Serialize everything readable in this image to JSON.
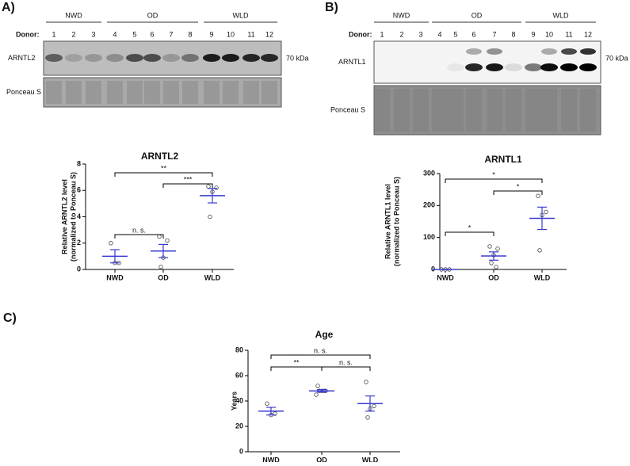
{
  "panels": [
    "A)",
    "B)",
    "C)"
  ],
  "blots": [
    {
      "groups": [
        "NWD",
        "OD",
        "WLD"
      ],
      "donor_label": "Donor:",
      "donors": [
        "1",
        "2",
        "3",
        "4",
        "5",
        "6",
        "7",
        "8",
        "9",
        "10",
        "11",
        "12"
      ],
      "protein": "ARNTL2",
      "size": "70 kDa",
      "loading": "Ponceau S"
    },
    {
      "groups": [
        "NWD",
        "OD",
        "WLD"
      ],
      "donor_label": "Donor:",
      "donors": [
        "1",
        "2",
        "3",
        "4",
        "5",
        "6",
        "7",
        "8",
        "9",
        "10",
        "11",
        "12"
      ],
      "protein": "ARNTL1",
      "size": "70 kDa",
      "loading": "Ponceau S"
    }
  ],
  "chart_data": [
    {
      "type": "scatter",
      "title": "ARNTL2",
      "y_label": [
        "Relative ARNTL2 level",
        "(normalized to Ponceau S)"
      ],
      "categories": [
        "NWD",
        "OD",
        "WLD"
      ],
      "groups": [
        [
          2.0,
          0.5,
          0.5
        ],
        [
          2.5,
          2.2,
          0.9,
          0.2
        ],
        [
          6.3,
          6.2,
          5.9,
          4.0
        ]
      ],
      "means": [
        1.0,
        1.4,
        5.6
      ],
      "sem": [
        0.5,
        0.5,
        0.55
      ],
      "color": "#3a3ad0",
      "ylim": [
        0,
        8
      ],
      "yticks": [
        0,
        2,
        4,
        6,
        8
      ],
      "annotations": [
        {
          "between": [
            "NWD",
            "WLD"
          ],
          "text": "**"
        },
        {
          "between": [
            "OD",
            "WLD"
          ],
          "text": "***"
        },
        {
          "between": [
            "NWD",
            "OD"
          ],
          "text": "n. s."
        }
      ]
    },
    {
      "type": "scatter",
      "title": "ARNTL1",
      "y_label": [
        "Relative ARNTL1 level",
        "(normalized to Ponceau S)"
      ],
      "categories": [
        "NWD",
        "OD",
        "WLD"
      ],
      "groups": [
        [
          0,
          0,
          0
        ],
        [
          72,
          65,
          45,
          20,
          8
        ],
        [
          230,
          180,
          170,
          60
        ]
      ],
      "means": [
        0,
        42,
        160
      ],
      "sem": [
        0,
        13,
        35
      ],
      "color": "#3a3ad0",
      "ylim": [
        0,
        300
      ],
      "yticks": [
        0,
        100,
        200,
        300
      ],
      "annotations": [
        {
          "between": [
            "NWD",
            "WLD"
          ],
          "text": "*"
        },
        {
          "between": [
            "OD",
            "WLD"
          ],
          "text": "*"
        },
        {
          "between": [
            "NWD",
            "OD"
          ],
          "text": "*"
        }
      ]
    },
    {
      "type": "scatter",
      "title": "Age",
      "y_label": [
        "Years"
      ],
      "categories": [
        "NWD",
        "OD",
        "WLD"
      ],
      "groups": [
        [
          38,
          30,
          29
        ],
        [
          52,
          48,
          48,
          48,
          48,
          45
        ],
        [
          55,
          36,
          34,
          27
        ]
      ],
      "means": [
        32,
        48,
        38
      ],
      "sem": [
        3,
        1,
        6
      ],
      "color": "#3a3ad0",
      "ylim": [
        0,
        80
      ],
      "yticks": [
        0,
        20,
        40,
        60,
        80
      ],
      "annotations": [
        {
          "between": [
            "NWD",
            "WLD"
          ],
          "text": "n. s."
        },
        {
          "between": [
            "NWD",
            "OD"
          ],
          "text": "**"
        },
        {
          "between": [
            "OD",
            "WLD"
          ],
          "text": "n. s."
        }
      ]
    }
  ]
}
